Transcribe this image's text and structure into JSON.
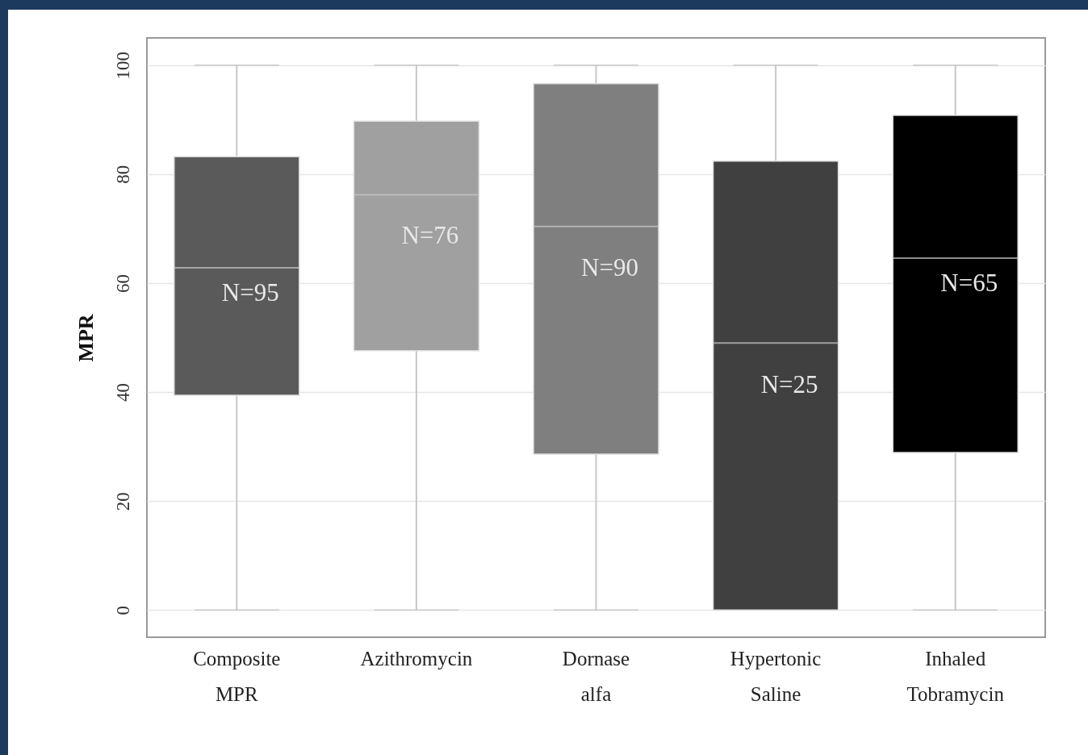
{
  "chart_data": {
    "type": "box",
    "ylabel": "MPR",
    "categories": [
      "Composite MPR",
      "Azithromycin",
      "Dornase alfa",
      "Hypertonic Saline",
      "Inhaled Tobramycin"
    ],
    "boxes": [
      {
        "low": 0,
        "q1": 39.4,
        "median": 62.8,
        "q3": 83.2,
        "high": 100
      },
      {
        "low": 0,
        "q1": 47.6,
        "median": 76.2,
        "q3": 89.7,
        "high": 100
      },
      {
        "low": 0,
        "q1": 28.6,
        "median": 70.4,
        "q3": 96.6,
        "high": 100
      },
      {
        "low": 0,
        "q1": 0,
        "median": 49,
        "q3": 82.4,
        "high": 100
      },
      {
        "low": 0,
        "q1": 28.9,
        "median": 64.6,
        "q3": 90.8,
        "high": 100
      }
    ],
    "colors": [
      "#5a5a5a",
      "#a0a0a0",
      "#7f7f7f",
      "#404040",
      "#000000"
    ],
    "annotations": [
      "N=95",
      "N=76",
      "N=90",
      "N=25",
      "N=65"
    ],
    "ylim": [
      -5,
      105
    ],
    "yticks": [
      0,
      20,
      40,
      60,
      80,
      100
    ],
    "grid": "y"
  }
}
